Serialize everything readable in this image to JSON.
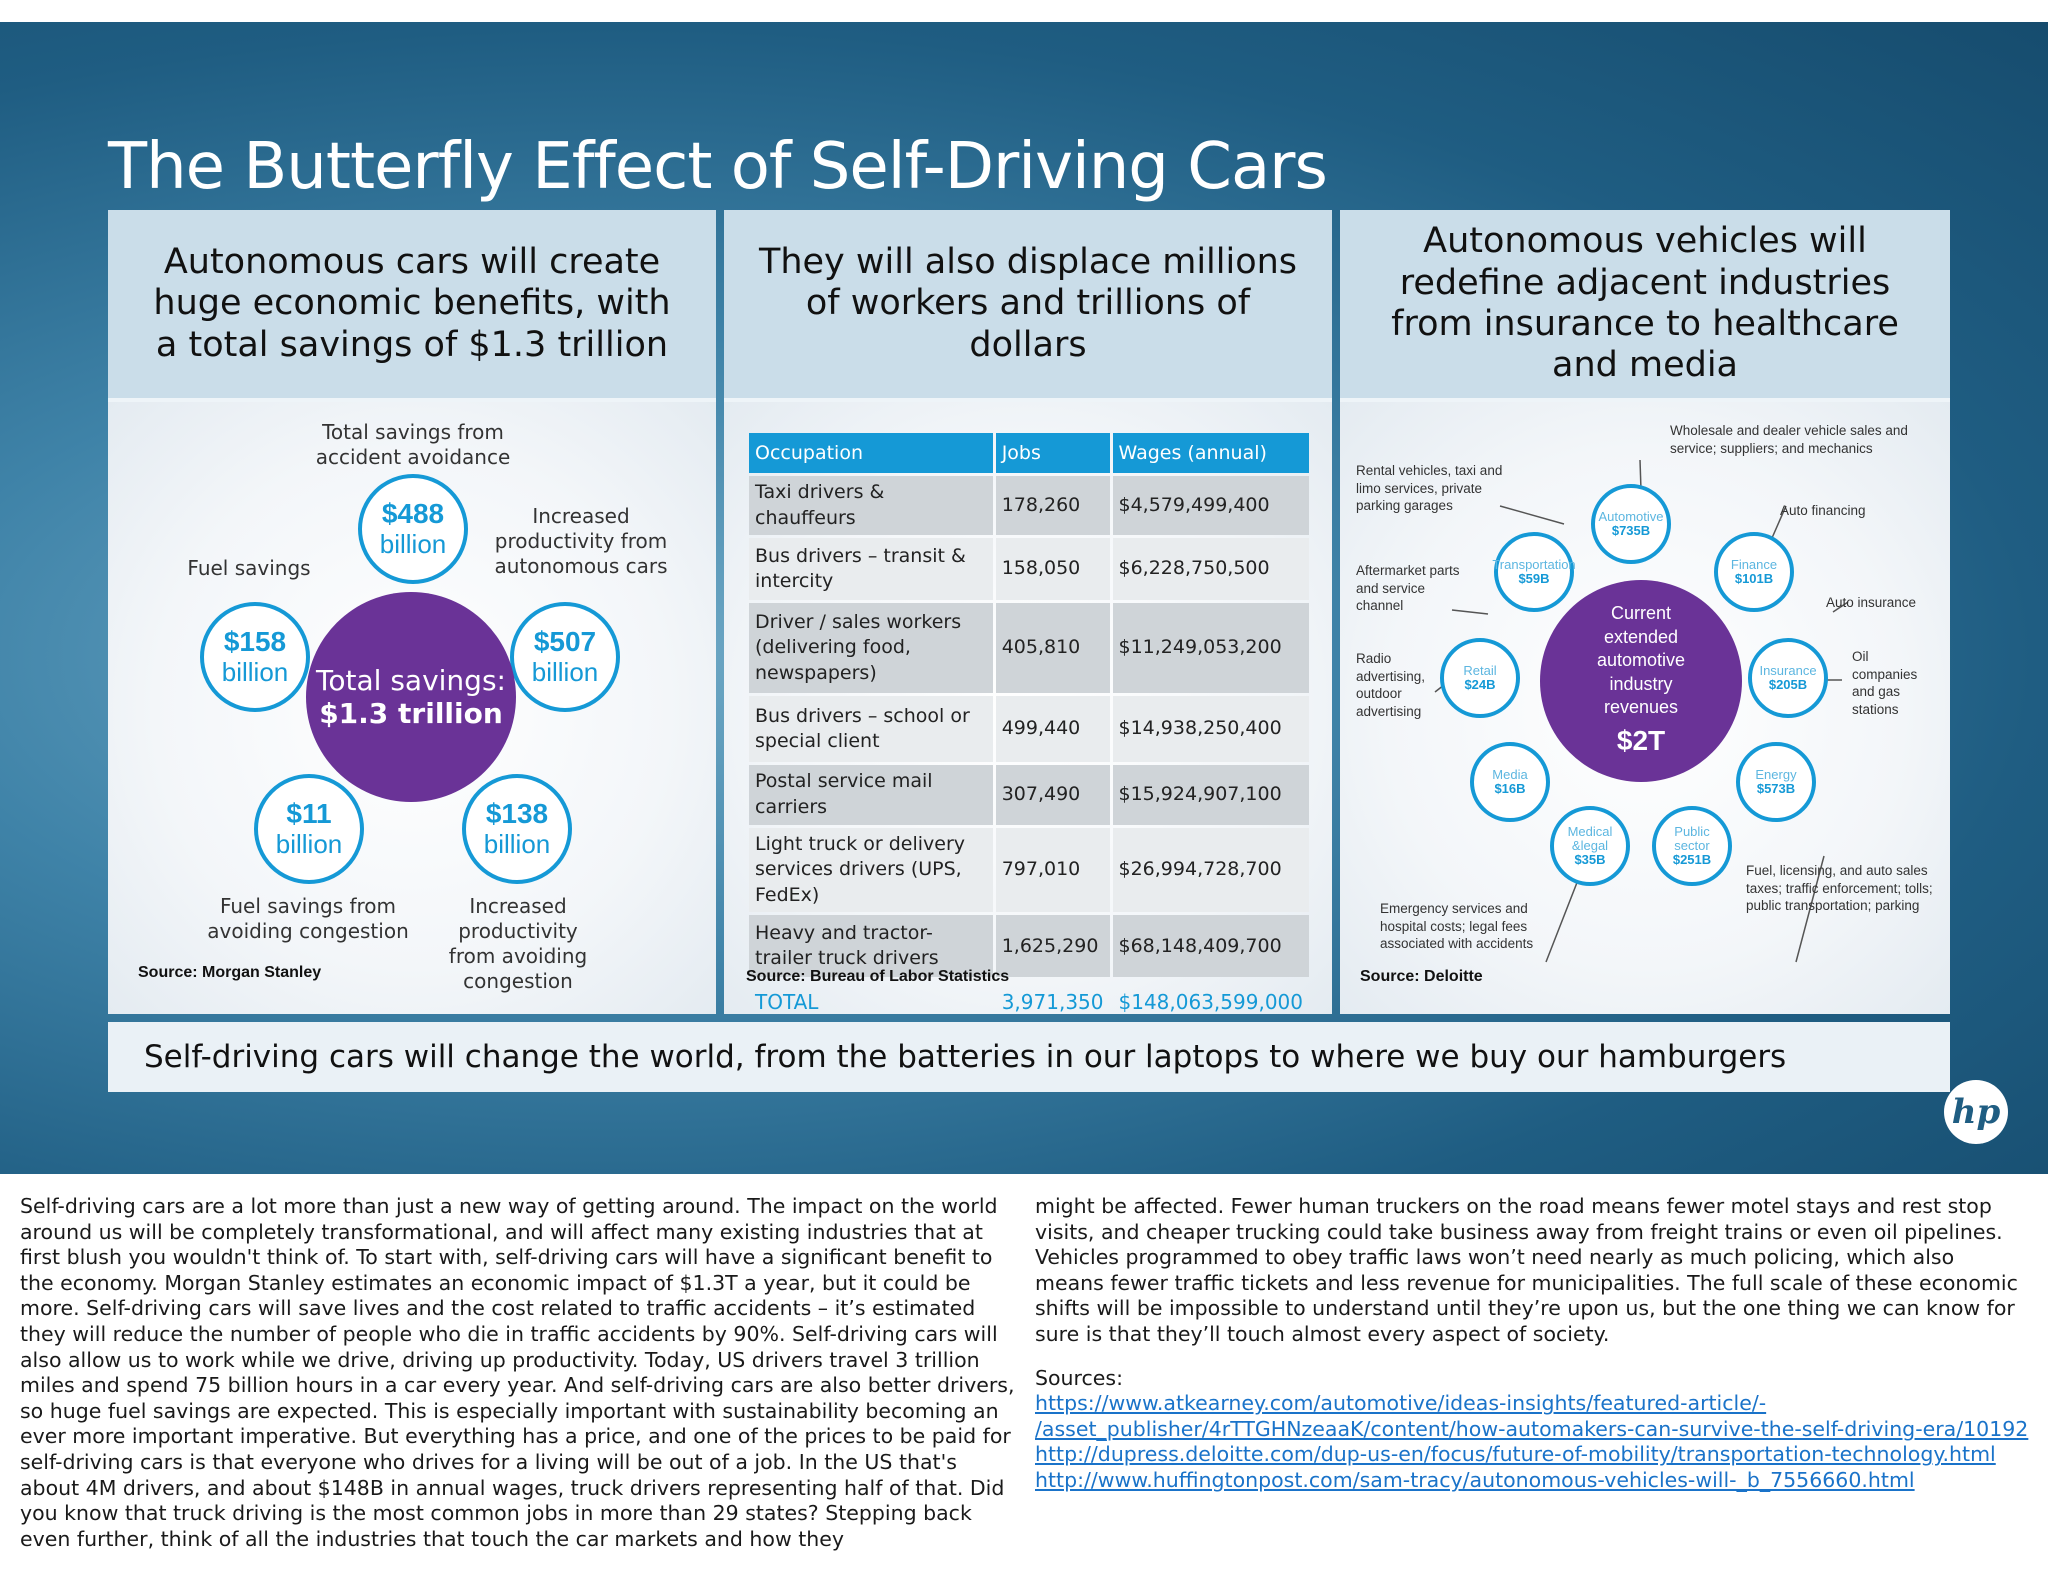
{
  "slide": {
    "title": "The Butterfly Effect of Self-Driving Cars",
    "banner": "Self-driving cars will change the world, from the batteries in our laptops to where we buy our hamburgers",
    "logo": "hp"
  },
  "panel1": {
    "heading": "Autonomous cars will create huge economic benefits, with a total savings of $1.3 trillion",
    "center": {
      "line1": "Total savings:",
      "line2": "$1.3 trillion"
    },
    "items": [
      {
        "value": "$488",
        "unit": "billion",
        "label": "Total savings from accident avoidance"
      },
      {
        "value": "$507",
        "unit": "billion",
        "label": "Increased productivity from autonomous cars"
      },
      {
        "value": "$138",
        "unit": "billion",
        "label": "Increased productivity from avoiding congestion"
      },
      {
        "value": "$11",
        "unit": "billion",
        "label": "Fuel savings from avoiding congestion"
      },
      {
        "value": "$158",
        "unit": "billion",
        "label": "Fuel savings"
      }
    ],
    "source": "Source: Morgan Stanley"
  },
  "panel2": {
    "heading": "They will also displace millions of workers and trillions of dollars",
    "columns": [
      "Occupation",
      "Jobs",
      "Wages (annual)"
    ],
    "rows": [
      {
        "occupation": "Taxi drivers & chauffeurs",
        "jobs": "178,260",
        "wages": "$4,579,499,400"
      },
      {
        "occupation": "Bus drivers – transit & intercity",
        "jobs": "158,050",
        "wages": "$6,228,750,500"
      },
      {
        "occupation": "Driver / sales workers (delivering food, newspapers)",
        "jobs": "405,810",
        "wages": "$11,249,053,200"
      },
      {
        "occupation": "Bus drivers – school or special client",
        "jobs": "499,440",
        "wages": "$14,938,250,400"
      },
      {
        "occupation": "Postal service mail carriers",
        "jobs": "307,490",
        "wages": "$15,924,907,100"
      },
      {
        "occupation": "Light truck or delivery services drivers (UPS, FedEx)",
        "jobs": "797,010",
        "wages": "$26,994,728,700"
      },
      {
        "occupation": "Heavy and tractor-trailer truck drivers",
        "jobs": "1,625,290",
        "wages": "$68,148,409,700"
      }
    ],
    "total": {
      "occupation": "TOTAL",
      "jobs": "3,971,350",
      "wages": "$148,063,599,000"
    },
    "source": "Source: Bureau of Labor Statistics"
  },
  "panel3": {
    "heading": "Autonomous vehicles will redefine adjacent industries from insurance to healthcare and media",
    "hub": {
      "l1": "Current",
      "l2": "extended",
      "l3": "automotive",
      "l4": "industry",
      "l5": "revenues",
      "value": "$2T"
    },
    "nodes": [
      {
        "name": "Automotive",
        "value": "$735B"
      },
      {
        "name": "Finance",
        "value": "$101B"
      },
      {
        "name": "Insurance",
        "value": "$205B"
      },
      {
        "name": "Energy",
        "value": "$573B"
      },
      {
        "name": "Public sector",
        "value": "$251B"
      },
      {
        "name": "Medical &legal",
        "value": "$35B"
      },
      {
        "name": "Media",
        "value": "$16B"
      },
      {
        "name": "Retail",
        "value": "$24B"
      },
      {
        "name": "Transportation",
        "value": "$59B"
      }
    ],
    "labels": {
      "automotive": "Wholesale and dealer vehicle sales and service; suppliers; and mechanics",
      "rental": "Rental vehicles, taxi and limo services, private parking garages",
      "finance": "Auto financing",
      "aftermarket": "Aftermarket parts and service channel",
      "insurance": "Auto insurance",
      "radio": "Radio advertising, outdoor advertising",
      "oil": "Oil companies and gas stations",
      "fuel": "Fuel, licensing, and auto sales taxes; traffic enforcement; tolls; public transportation; parking",
      "emergency": "Emergency services and hospital costs; legal fees associated with accidents"
    },
    "source": "Source: Deloitte"
  },
  "notes": {
    "left": "Self-driving cars are a lot more than just a new way of getting around.  The impact on the world around us will be completely transformational, and will affect many existing industries that at first blush you wouldn't think of. To start with, self-driving cars will have a significant benefit to the economy. Morgan Stanley estimates an economic impact of $1.3T a year, but it could be more. Self-driving cars will save lives and the cost related to traffic accidents – it’s estimated they will reduce the number of people who die in traffic accidents by 90%. Self-driving cars will also allow us to work while we drive, driving up productivity. Today, US drivers travel 3 trillion miles and spend 75 billion hours in a car every year. And self-driving cars are also better drivers, so huge fuel savings are expected. This is especially important with sustainability becoming an ever more important imperative. But everything has a price, and one of the prices to be paid for self-driving cars is that everyone who drives for a living will be out of a job. In the US that's about 4M drivers, and about $148B in annual wages, truck drivers representing half of that. Did you know that truck driving is the most common jobs in more than 29 states? Stepping back even further, think of all the industries that touch the car markets and how they",
    "right": "might be affected. Fewer human truckers on the road means fewer motel stays and rest stop visits, and cheaper trucking could take business away from freight trains or even oil pipelines. Vehicles programmed to obey traffic laws won’t need nearly as much policing, which also means fewer traffic tickets and less revenue for municipalities. The full scale of these economic shifts will be impossible to understand until they’re upon us, but the one thing we can know for sure is that they’ll touch almost every aspect of society.",
    "sources_label": "Sources:",
    "links": [
      "https://www.atkearney.com/automotive/ideas-insights/featured-article/-",
      "/asset_publisher/4rTTGHNzeaaK/content/how-automakers-can-survive-the-self-driving-era/10192",
      "http://dupress.deloitte.com/dup-us-en/focus/future-of-mobility/transportation-technology.html",
      "http://www.huffingtonpost.com/sam-tracy/autonomous-vehicles-will-_b_7556660.html"
    ]
  }
}
